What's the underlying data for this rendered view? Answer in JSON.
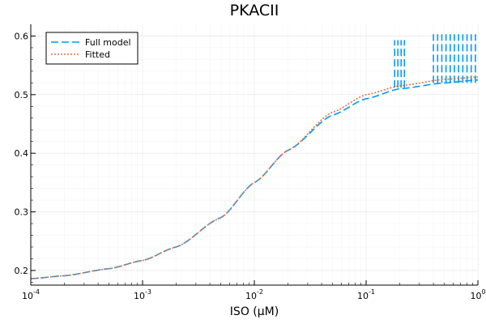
{
  "chart_data": {
    "type": "line",
    "title": "PKACII",
    "xlabel": "ISO (μM)",
    "ylabel": "",
    "xscale": "log10",
    "xlim": [
      0.0001,
      1
    ],
    "ylim": [
      0.175,
      0.62
    ],
    "x_tick_exponents": [
      -4,
      -3,
      -2,
      -1,
      0
    ],
    "x_tick_base": "10",
    "y_ticks": [
      "0.2",
      "0.3",
      "0.4",
      "0.5",
      "0.6"
    ],
    "grid": true,
    "legend_position": "top-left",
    "x": [
      0.0001,
      0.0002,
      0.0005,
      0.001,
      0.002,
      0.005,
      0.01,
      0.02,
      0.05,
      0.1,
      0.2,
      0.5,
      1
    ],
    "series": [
      {
        "name": "Full model",
        "color": "#009AF9",
        "dash": "long-dash",
        "values": [
          0.186,
          0.191,
          0.203,
          0.217,
          0.24,
          0.29,
          0.35,
          0.405,
          0.465,
          0.493,
          0.51,
          0.52,
          0.525
        ],
        "oscillation_segments": [
          {
            "x_start": 0.18,
            "x_end": 0.22,
            "high": 0.593,
            "low": 0.512
          },
          {
            "x_start": 0.4,
            "x_end": 0.95,
            "high": 0.603,
            "low": 0.52
          }
        ]
      },
      {
        "name": "Fitted",
        "color": "#E26F46",
        "dash": "dotted",
        "values": [
          0.186,
          0.191,
          0.203,
          0.217,
          0.24,
          0.29,
          0.35,
          0.405,
          0.47,
          0.5,
          0.515,
          0.526,
          0.53
        ]
      }
    ]
  }
}
